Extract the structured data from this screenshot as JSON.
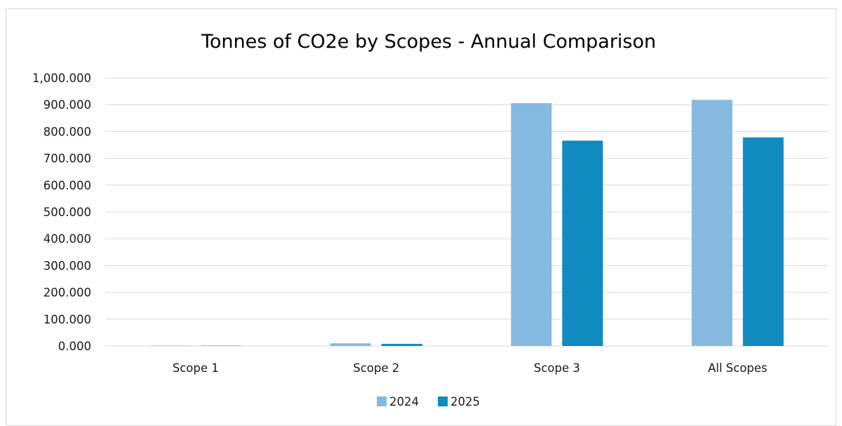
{
  "chart_data": {
    "type": "bar",
    "title": "Tonnes of CO2e by Scopes - Annual Comparison",
    "xlabel": "",
    "ylabel": "",
    "categories": [
      "Scope 1",
      "Scope 2",
      "Scope 3",
      "All Scopes"
    ],
    "series": [
      {
        "name": "2024",
        "color": "#86b9e0",
        "values": [
          1.5,
          10,
          906,
          918
        ]
      },
      {
        "name": "2025",
        "color": "#118ac0",
        "values": [
          1.2,
          8,
          766,
          778
        ]
      }
    ],
    "ylim": [
      0,
      1000
    ],
    "yticks": [
      0,
      100,
      200,
      300,
      400,
      500,
      600,
      700,
      800,
      900,
      1000
    ],
    "ytick_labels": [
      "0.000",
      "100.000",
      "200.000",
      "300.000",
      "400.000",
      "500.000",
      "600.000",
      "700.000",
      "800.000",
      "900.000",
      "1,000.000"
    ],
    "grid": true,
    "legend_position": "bottom"
  }
}
